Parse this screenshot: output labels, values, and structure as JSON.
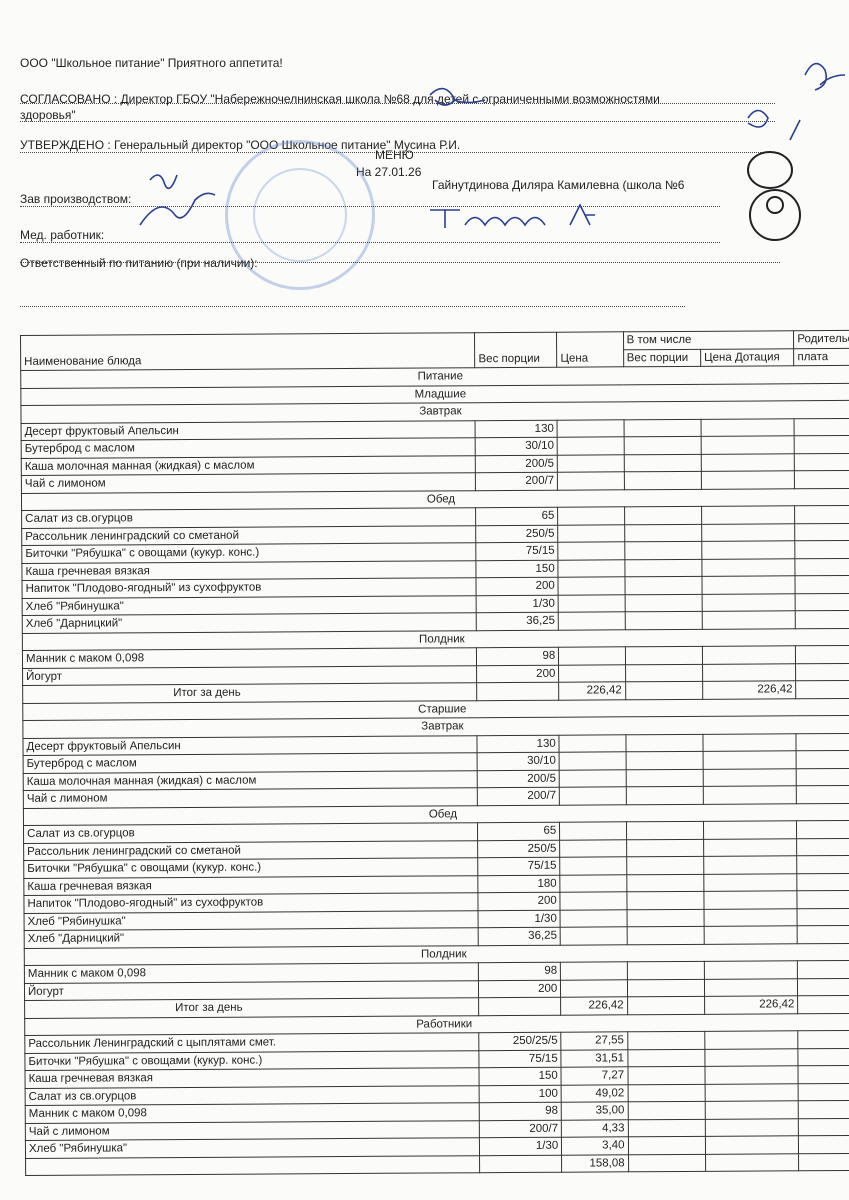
{
  "header": {
    "company": "ООО \"Школьное питание\" Приятного аппетита!",
    "agreed": "СОГЛАСОВАНО : Директор ГБОУ \"Набережночелнинская школа №68 для детей с ограниченными возможностями",
    "agreed_cont": "здоровья\"",
    "approved": "УТВЕРЖДЕНО : Генеральный директор \"ООО Школьное питание\" Мусина Р.И.",
    "title": "МЕНЮ",
    "date": "На 27.01.26",
    "production_label": "Зав производством:",
    "production_name": "Гайнутдинова Диляра Камилевна (школа №6",
    "medic_label": "Мед. работник:",
    "responsible_label": "Ответственный по питанию (при наличии):"
  },
  "table": {
    "headers": {
      "name": "Наименование блюда",
      "weight": "Вес порции",
      "price": "Цена",
      "including": "В том числе",
      "inc_weight": "Вес порции",
      "inc_price": "Цена Дотация",
      "parent": "Родительс",
      "parent2": "плата"
    },
    "title": "Питание",
    "groups": [
      {
        "name": "Младшие",
        "meals": [
          {
            "name": "Завтрак",
            "items": [
              [
                "Десерт фруктовый Апельсин",
                "130"
              ],
              [
                "Бутерброд с маслом",
                "30/10"
              ],
              [
                "Каша молочная манная (жидкая) с маслом",
                "200/5"
              ],
              [
                "Чай с лимоном",
                "200/7"
              ]
            ]
          },
          {
            "name": "Обед",
            "items": [
              [
                "Салат из св.огурцов",
                "65"
              ],
              [
                "Рассольник ленинградский со сметаной",
                "250/5"
              ],
              [
                "Биточки \"Рябушка\" с овощами (кукур. конс.)",
                "75/15"
              ],
              [
                "Каша гречневая вязкая",
                "150"
              ],
              [
                "Напиток \"Плодово-ягодный\" из сухофруктов",
                "200"
              ],
              [
                "Хлеб \"Рябинушка\"",
                "1/30"
              ],
              [
                "Хлеб \"Дарницкий\"",
                "36,25"
              ]
            ]
          },
          {
            "name": "Полдник",
            "items": [
              [
                "Манник с маком 0,098",
                "98"
              ],
              [
                "Йогурт",
                "200"
              ]
            ]
          }
        ],
        "total_label": "Итог за день",
        "total_price": "226,42",
        "total_subsidy": "226,42"
      },
      {
        "name": "Старшие",
        "meals": [
          {
            "name": "Завтрак",
            "items": [
              [
                "Десерт фруктовый Апельсин",
                "130"
              ],
              [
                "Бутерброд с маслом",
                "30/10"
              ],
              [
                "Каша молочная манная (жидкая) с маслом",
                "200/5"
              ],
              [
                "Чай с лимоном",
                "200/7"
              ]
            ]
          },
          {
            "name": "Обед",
            "items": [
              [
                "Салат из св.огурцов",
                "65"
              ],
              [
                "Рассольник ленинградский со сметаной",
                "250/5"
              ],
              [
                "Биточки \"Рябушка\" с овощами (кукур. конс.)",
                "75/15"
              ],
              [
                "Каша гречневая вязкая",
                "180"
              ],
              [
                "Напиток \"Плодово-ягодный\" из сухофруктов",
                "200"
              ],
              [
                "Хлеб \"Рябинушка\"",
                "1/30"
              ],
              [
                "Хлеб \"Дарницкий\"",
                "36,25"
              ]
            ]
          },
          {
            "name": "Полдник",
            "items": [
              [
                "Манник с маком 0,098",
                "98"
              ],
              [
                "Йогурт",
                "200"
              ]
            ]
          }
        ],
        "total_label": "Итог за день",
        "total_price": "226,42",
        "total_subsidy": "226,42"
      }
    ],
    "workers": {
      "name": "Работники",
      "items": [
        [
          "Рассольник Ленинградский с цыплятами смет.",
          "250/25/5",
          "27,55"
        ],
        [
          "Биточки \"Рябушка\" с овощами (кукур. конс.)",
          "75/15",
          "31,51"
        ],
        [
          "Каша гречневая вязкая",
          "150",
          "7,27"
        ],
        [
          "Салат из св.огурцов",
          "100",
          "49,02"
        ],
        [
          "Манник с маком 0,098",
          "98",
          "35,00"
        ],
        [
          "Чай с лимоном",
          "200/7",
          "4,33"
        ],
        [
          "Хлеб \"Рябинушка\"",
          "1/30",
          "3,40"
        ]
      ],
      "total": "158,08"
    }
  }
}
